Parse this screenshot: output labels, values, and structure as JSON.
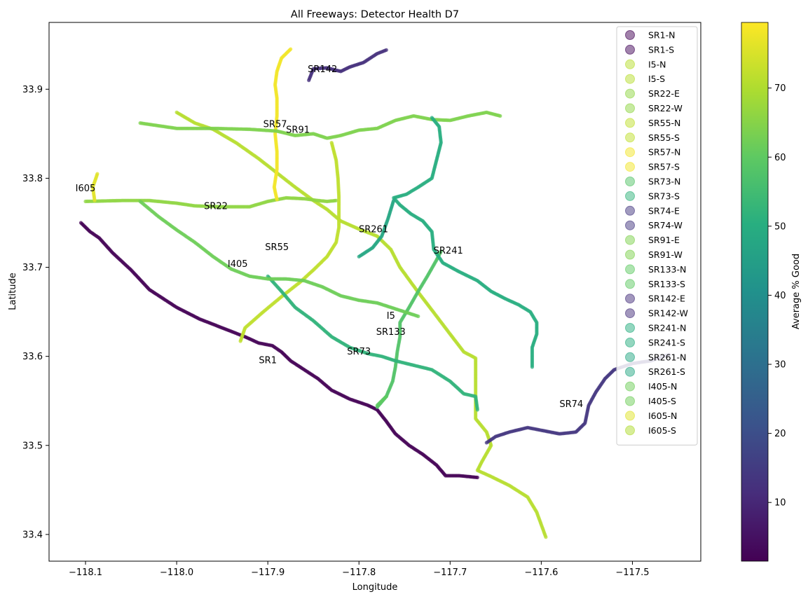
{
  "chart_data": {
    "type": "scatter",
    "title": "All Freeways: Detector Health D7",
    "xlabel": "Longitude",
    "ylabel": "Latitude",
    "xlim": [
      -118.14,
      -117.425
    ],
    "ylim": [
      33.37,
      33.975
    ],
    "xticks": [
      -118.1,
      -118.0,
      -117.9,
      -117.8,
      -117.7,
      -117.6,
      -117.5
    ],
    "xtick_labels": [
      "−118.1",
      "−118.0",
      "−117.9",
      "−117.8",
      "−117.7",
      "−117.6",
      "−117.5"
    ],
    "yticks": [
      33.4,
      33.5,
      33.6,
      33.7,
      33.8,
      33.9
    ],
    "ytick_labels": [
      "33.4",
      "33.5",
      "33.6",
      "33.7",
      "33.8",
      "33.9"
    ],
    "grid": false,
    "legend_position": "upper-right",
    "colorbar": {
      "label": "Average % Good",
      "min": 1.5,
      "max": 79.5,
      "ticks": [
        10,
        20,
        30,
        40,
        50,
        60,
        70
      ],
      "colormap": "viridis"
    },
    "series": [
      {
        "name": "SR1-N",
        "value": 2,
        "points": [
          [
            -118.105,
            33.75
          ],
          [
            -118.095,
            33.74
          ],
          [
            -118.085,
            33.733
          ],
          [
            -118.07,
            33.716
          ],
          [
            -118.05,
            33.697
          ],
          [
            -118.03,
            33.675
          ],
          [
            -118.0,
            33.655
          ],
          [
            -117.975,
            33.642
          ],
          [
            -117.95,
            33.632
          ],
          [
            -117.925,
            33.622
          ],
          [
            -117.91,
            33.615
          ],
          [
            -117.895,
            33.612
          ],
          [
            -117.885,
            33.605
          ],
          [
            -117.875,
            33.595
          ],
          [
            -117.86,
            33.585
          ],
          [
            -117.845,
            33.575
          ],
          [
            -117.83,
            33.562
          ],
          [
            -117.81,
            33.552
          ],
          [
            -117.79,
            33.545
          ],
          [
            -117.78,
            33.54
          ],
          [
            -117.77,
            33.527
          ],
          [
            -117.76,
            33.513
          ],
          [
            -117.745,
            33.5
          ],
          [
            -117.73,
            33.49
          ],
          [
            -117.715,
            33.478
          ],
          [
            -117.705,
            33.466
          ],
          [
            -117.69,
            33.466
          ],
          [
            -117.67,
            33.464
          ]
        ]
      },
      {
        "name": "SR1-S",
        "value": 3
      },
      {
        "name": "I5-N",
        "value": 71,
        "points": [
          [
            -118.0,
            33.874
          ],
          [
            -117.98,
            33.862
          ],
          [
            -117.96,
            33.855
          ],
          [
            -117.935,
            33.84
          ],
          [
            -117.91,
            33.822
          ],
          [
            -117.89,
            33.806
          ],
          [
            -117.87,
            33.79
          ],
          [
            -117.85,
            33.775
          ],
          [
            -117.835,
            33.765
          ],
          [
            -117.82,
            33.752
          ],
          [
            -117.8,
            33.743
          ],
          [
            -117.78,
            33.735
          ],
          [
            -117.765,
            33.72
          ],
          [
            -117.755,
            33.7
          ],
          [
            -117.745,
            33.686
          ],
          [
            -117.735,
            33.672
          ],
          [
            -117.72,
            33.652
          ],
          [
            -117.7,
            33.625
          ],
          [
            -117.685,
            33.605
          ],
          [
            -117.672,
            33.598
          ],
          [
            -117.672,
            33.575
          ],
          [
            -117.672,
            33.55
          ],
          [
            -117.672,
            33.53
          ],
          [
            -117.66,
            33.515
          ],
          [
            -117.655,
            33.5
          ],
          [
            -117.665,
            33.482
          ],
          [
            -117.67,
            33.472
          ],
          [
            -117.655,
            33.465
          ],
          [
            -117.635,
            33.455
          ],
          [
            -117.615,
            33.442
          ],
          [
            -117.605,
            33.425
          ],
          [
            -117.595,
            33.397
          ]
        ]
      },
      {
        "name": "I5-S",
        "value": 71
      },
      {
        "name": "SR22-E",
        "value": 66,
        "points": [
          [
            -118.1,
            33.774
          ],
          [
            -118.06,
            33.775
          ],
          [
            -118.03,
            33.775
          ],
          [
            -118.0,
            33.772
          ],
          [
            -117.98,
            33.769
          ],
          [
            -117.95,
            33.768
          ],
          [
            -117.92,
            33.768
          ],
          [
            -117.9,
            33.774
          ],
          [
            -117.88,
            33.778
          ],
          [
            -117.86,
            33.777
          ],
          [
            -117.845,
            33.775
          ],
          [
            -117.835,
            33.774
          ],
          [
            -117.825,
            33.775
          ]
        ]
      },
      {
        "name": "SR22-W",
        "value": 66
      },
      {
        "name": "SR55-N",
        "value": 72,
        "points": [
          [
            -117.93,
            33.617
          ],
          [
            -117.925,
            33.632
          ],
          [
            -117.905,
            33.65
          ],
          [
            -117.885,
            33.667
          ],
          [
            -117.865,
            33.683
          ],
          [
            -117.85,
            33.697
          ],
          [
            -117.835,
            33.712
          ],
          [
            -117.825,
            33.728
          ],
          [
            -117.822,
            33.745
          ],
          [
            -117.822,
            33.76
          ],
          [
            -117.822,
            33.78
          ],
          [
            -117.823,
            33.8
          ],
          [
            -117.825,
            33.82
          ],
          [
            -117.83,
            33.84
          ]
        ]
      },
      {
        "name": "SR55-S",
        "value": 72
      },
      {
        "name": "SR57-N",
        "value": 78,
        "points": [
          [
            -117.875,
            33.945
          ],
          [
            -117.885,
            33.935
          ],
          [
            -117.89,
            33.92
          ],
          [
            -117.892,
            33.905
          ],
          [
            -117.89,
            33.89
          ],
          [
            -117.89,
            33.87
          ],
          [
            -117.892,
            33.85
          ],
          [
            -117.89,
            33.83
          ],
          [
            -117.89,
            33.81
          ],
          [
            -117.893,
            33.79
          ],
          [
            -117.89,
            33.776
          ]
        ]
      },
      {
        "name": "SR57-S",
        "value": 78
      },
      {
        "name": "SR73-N",
        "value": 58,
        "points": [
          [
            -117.78,
            33.543
          ],
          [
            -117.77,
            33.555
          ],
          [
            -117.763,
            33.572
          ],
          [
            -117.76,
            33.588
          ],
          [
            -117.758,
            33.605
          ],
          [
            -117.755,
            33.622
          ],
          [
            -117.755,
            33.638
          ],
          [
            -117.745,
            33.655
          ],
          [
            -117.735,
            33.673
          ],
          [
            -117.725,
            33.69
          ],
          [
            -117.715,
            33.708
          ],
          [
            -117.71,
            33.718
          ]
        ]
      },
      {
        "name": "SR73-S",
        "value": 52,
        "points": [
          [
            -117.9,
            33.69
          ],
          [
            -117.885,
            33.673
          ],
          [
            -117.87,
            33.655
          ],
          [
            -117.85,
            33.64
          ],
          [
            -117.83,
            33.622
          ],
          [
            -117.81,
            33.61
          ],
          [
            -117.79,
            33.603
          ],
          [
            -117.775,
            33.6
          ],
          [
            -117.76,
            33.595
          ],
          [
            -117.74,
            33.59
          ],
          [
            -117.72,
            33.585
          ],
          [
            -117.7,
            33.572
          ],
          [
            -117.685,
            33.558
          ],
          [
            -117.672,
            33.555
          ],
          [
            -117.67,
            33.54
          ]
        ]
      },
      {
        "name": "SR74-E",
        "value": 14,
        "points": [
          [
            -117.66,
            33.503
          ],
          [
            -117.65,
            33.51
          ],
          [
            -117.635,
            33.515
          ],
          [
            -117.615,
            33.52
          ],
          [
            -117.6,
            33.517
          ],
          [
            -117.58,
            33.513
          ],
          [
            -117.562,
            33.515
          ],
          [
            -117.552,
            33.525
          ],
          [
            -117.548,
            33.545
          ],
          [
            -117.54,
            33.56
          ],
          [
            -117.53,
            33.575
          ],
          [
            -117.52,
            33.585
          ],
          [
            -117.5,
            33.592
          ],
          [
            -117.48,
            33.595
          ],
          [
            -117.46,
            33.602
          ]
        ]
      },
      {
        "name": "SR74-W",
        "value": 14
      },
      {
        "name": "SR91-E",
        "value": 64,
        "points": [
          [
            -118.04,
            33.862
          ],
          [
            -118.0,
            33.856
          ],
          [
            -117.96,
            33.856
          ],
          [
            -117.92,
            33.855
          ],
          [
            -117.89,
            33.853
          ],
          [
            -117.87,
            33.848
          ],
          [
            -117.85,
            33.85
          ],
          [
            -117.835,
            33.845
          ],
          [
            -117.82,
            33.848
          ],
          [
            -117.8,
            33.854
          ],
          [
            -117.78,
            33.856
          ],
          [
            -117.76,
            33.865
          ],
          [
            -117.74,
            33.87
          ],
          [
            -117.72,
            33.866
          ],
          [
            -117.7,
            33.865
          ],
          [
            -117.68,
            33.87
          ],
          [
            -117.66,
            33.874
          ],
          [
            -117.645,
            33.87
          ]
        ]
      },
      {
        "name": "SR91-W",
        "value": 64
      },
      {
        "name": "SR133-N",
        "value": 60,
        "points": [
          [
            -117.78,
            33.545
          ],
          [
            -117.77,
            33.555
          ]
        ]
      },
      {
        "name": "SR133-S",
        "value": 60
      },
      {
        "name": "SR142-E",
        "value": 12,
        "points": [
          [
            -117.855,
            33.91
          ],
          [
            -117.85,
            33.923
          ],
          [
            -117.835,
            33.924
          ],
          [
            -117.82,
            33.92
          ],
          [
            -117.81,
            33.925
          ],
          [
            -117.795,
            33.93
          ],
          [
            -117.78,
            33.94
          ],
          [
            -117.77,
            33.944
          ]
        ]
      },
      {
        "name": "SR142-W",
        "value": 12
      },
      {
        "name": "SR241-N",
        "value": 50,
        "points": [
          [
            -117.72,
            33.868
          ],
          [
            -117.712,
            33.858
          ],
          [
            -117.71,
            33.84
          ],
          [
            -117.715,
            33.82
          ],
          [
            -117.72,
            33.8
          ],
          [
            -117.735,
            33.79
          ],
          [
            -117.748,
            33.782
          ],
          [
            -117.762,
            33.778
          ],
          [
            -117.755,
            33.77
          ],
          [
            -117.743,
            33.76
          ],
          [
            -117.73,
            33.752
          ],
          [
            -117.72,
            33.74
          ],
          [
            -117.718,
            33.72
          ],
          [
            -117.708,
            33.705
          ],
          [
            -117.69,
            33.695
          ],
          [
            -117.67,
            33.685
          ],
          [
            -117.655,
            33.673
          ],
          [
            -117.64,
            33.665
          ],
          [
            -117.625,
            33.658
          ],
          [
            -117.612,
            33.65
          ],
          [
            -117.605,
            33.638
          ],
          [
            -117.605,
            33.625
          ],
          [
            -117.61,
            33.61
          ],
          [
            -117.61,
            33.588
          ]
        ]
      },
      {
        "name": "SR241-S",
        "value": 50
      },
      {
        "name": "SR261-N",
        "value": 48,
        "points": [
          [
            -117.8,
            33.712
          ],
          [
            -117.785,
            33.722
          ],
          [
            -117.775,
            33.735
          ],
          [
            -117.768,
            33.755
          ],
          [
            -117.762,
            33.775
          ]
        ]
      },
      {
        "name": "SR261-S",
        "value": 48
      },
      {
        "name": "I405-N",
        "value": 62,
        "points": [
          [
            -118.04,
            33.774
          ],
          [
            -118.02,
            33.757
          ],
          [
            -118.0,
            33.742
          ],
          [
            -117.98,
            33.728
          ],
          [
            -117.96,
            33.712
          ],
          [
            -117.94,
            33.698
          ],
          [
            -117.92,
            33.69
          ],
          [
            -117.9,
            33.687
          ],
          [
            -117.88,
            33.687
          ],
          [
            -117.86,
            33.685
          ],
          [
            -117.84,
            33.678
          ],
          [
            -117.82,
            33.668
          ],
          [
            -117.8,
            33.663
          ],
          [
            -117.78,
            33.66
          ],
          [
            -117.765,
            33.655
          ],
          [
            -117.75,
            33.65
          ],
          [
            -117.735,
            33.645
          ]
        ]
      },
      {
        "name": "I405-S",
        "value": 62
      },
      {
        "name": "I605-N",
        "value": 76,
        "points": [
          [
            -118.087,
            33.805
          ],
          [
            -118.092,
            33.79
          ],
          [
            -118.09,
            33.775
          ]
        ]
      },
      {
        "name": "I605-S",
        "value": 70
      }
    ],
    "annotations": [
      {
        "text": "SR142",
        "x": -117.84,
        "y": 33.922
      },
      {
        "text": "SR57",
        "x": -117.892,
        "y": 33.86
      },
      {
        "text": "SR91",
        "x": -117.867,
        "y": 33.854
      },
      {
        "text": "I605",
        "x": -118.1,
        "y": 33.788
      },
      {
        "text": "SR22",
        "x": -117.957,
        "y": 33.768
      },
      {
        "text": "SR261",
        "x": -117.784,
        "y": 33.742
      },
      {
        "text": "SR55",
        "x": -117.89,
        "y": 33.722
      },
      {
        "text": "SR241",
        "x": -117.702,
        "y": 33.718
      },
      {
        "text": "I405",
        "x": -117.933,
        "y": 33.703
      },
      {
        "text": "I5",
        "x": -117.765,
        "y": 33.645
      },
      {
        "text": "SR133",
        "x": -117.765,
        "y": 33.627
      },
      {
        "text": "SR73",
        "x": -117.8,
        "y": 33.605
      },
      {
        "text": "SR1",
        "x": -117.9,
        "y": 33.595
      },
      {
        "text": "SR74",
        "x": -117.567,
        "y": 33.546
      }
    ]
  }
}
